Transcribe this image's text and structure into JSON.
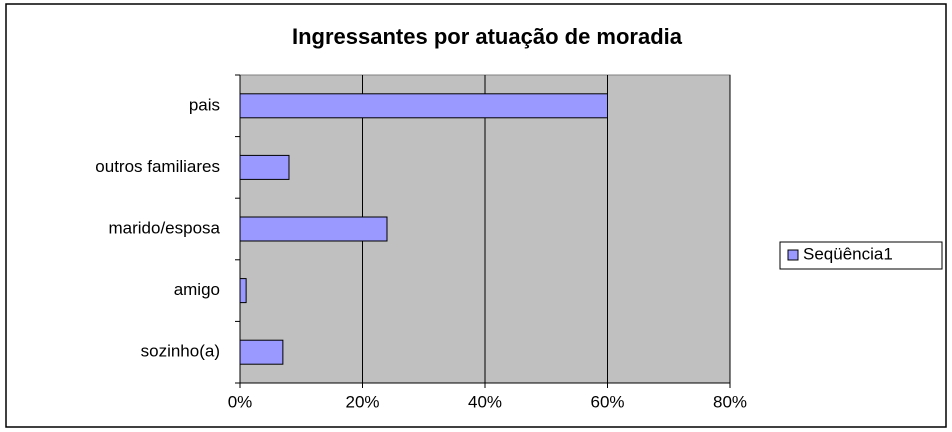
{
  "chart_data": {
    "type": "bar",
    "orientation": "horizontal",
    "title": "Ingressantes por atuação de moradia",
    "categories": [
      "pais",
      "outros familiares",
      "marido/esposa",
      "amigo",
      "sozinho(a)"
    ],
    "series": [
      {
        "name": "Seqüência1",
        "color": "#9999ff",
        "values": [
          60,
          8,
          24,
          1,
          7
        ]
      }
    ],
    "xlim": [
      0,
      80
    ],
    "xticks": [
      {
        "value": 0,
        "label": "0%"
      },
      {
        "value": 20,
        "label": "20%"
      },
      {
        "value": 40,
        "label": "40%"
      },
      {
        "value": 60,
        "label": "60%"
      },
      {
        "value": 80,
        "label": "80%"
      }
    ],
    "grid": true,
    "legend": "right"
  }
}
